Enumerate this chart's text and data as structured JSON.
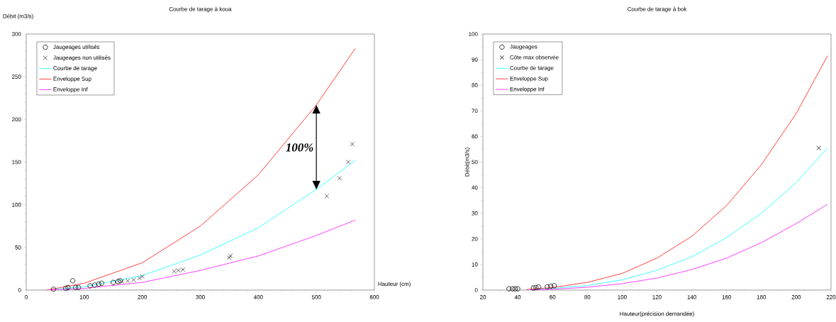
{
  "chart_data": [
    {
      "type": "line",
      "title": "Courbe de tarage à koua",
      "xlabel": "Hauteur (cm)",
      "ylabel": "Débit (m3/s)",
      "xlim": [
        0,
        600
      ],
      "ylim": [
        0,
        300
      ],
      "xticks": [
        0,
        100,
        200,
        300,
        400,
        500,
        600
      ],
      "yticks": [
        0,
        50,
        100,
        150,
        200,
        250,
        300
      ],
      "legend": "top left",
      "grid": false,
      "annotations": [
        "100%"
      ],
      "series": [
        {
          "type": "scatter",
          "name": "Jaugeages utilisés",
          "color": "#000000",
          "marker": "circle",
          "x": [
            47,
            68,
            72,
            80,
            85,
            90,
            110,
            118,
            125,
            130,
            150,
            158,
            162
          ],
          "values": [
            1,
            2,
            3,
            11,
            3,
            3,
            5,
            6,
            7,
            8,
            9,
            10,
            11
          ]
        },
        {
          "type": "scatter",
          "name": "Jaugeages non utilisés",
          "color": "#404040",
          "marker": "cross",
          "x": [
            165,
            175,
            185,
            195,
            200,
            255,
            262,
            270,
            350,
            352,
            518,
            540,
            555,
            562
          ],
          "values": [
            10,
            11,
            12,
            14,
            16,
            22,
            23,
            24,
            38,
            40,
            110,
            131,
            150,
            171
          ]
        },
        {
          "name": "Courbe de tarage",
          "color": "#40ffff",
          "x": [
            35,
            100,
            200,
            300,
            400,
            500,
            567
          ],
          "values": [
            0,
            4,
            17,
            41,
            73,
            118,
            152
          ]
        },
        {
          "name": "Enveloppe Sup",
          "color": "#ff4040",
          "x": [
            35,
            100,
            200,
            300,
            400,
            500,
            567
          ],
          "values": [
            0,
            8,
            32,
            75,
            135,
            217,
            283
          ]
        },
        {
          "name": "Enveloppe Inf",
          "color": "#ff40ff",
          "x": [
            35,
            100,
            200,
            300,
            400,
            500,
            567
          ],
          "values": [
            0,
            2,
            9,
            23,
            40,
            64,
            82
          ]
        }
      ]
    },
    {
      "type": "line",
      "title": "Courbe de tarage à bok",
      "xlabel": "Hauteur(précision demandée)",
      "ylabel": "Débit(m3/s)",
      "xlim": [
        20,
        220
      ],
      "ylim": [
        0,
        100
      ],
      "xticks": [
        20,
        40,
        60,
        80,
        100,
        120,
        140,
        160,
        180,
        200,
        220
      ],
      "yticks": [
        0,
        10,
        20,
        30,
        40,
        50,
        60,
        70,
        80,
        90,
        100
      ],
      "legend": "top left",
      "grid": false,
      "series": [
        {
          "type": "scatter",
          "name": "Jaugeages",
          "color": "#000000",
          "marker": "circle",
          "x": [
            35,
            37,
            38.5,
            40,
            49,
            50.5,
            52,
            57,
            59,
            61
          ],
          "values": [
            0.5,
            0.5,
            0.5,
            0.5,
            0.8,
            1,
            1.2,
            1.3,
            1.5,
            1.7
          ]
        },
        {
          "type": "scatter",
          "name": "Côte max observée",
          "color": "#000000",
          "marker": "cross",
          "x": [
            213
          ],
          "values": [
            55.5
          ]
        },
        {
          "name": "Courbe de tarage",
          "color": "#40ffff",
          "x": [
            45,
            60,
            80,
            100,
            120,
            140,
            160,
            180,
            200,
            218
          ],
          "values": [
            0.1,
            0.6,
            1.8,
            4,
            7.7,
            13,
            20.5,
            30,
            42,
            55.5
          ]
        },
        {
          "name": "Enveloppe Sup",
          "color": "#ff4040",
          "x": [
            45,
            60,
            80,
            100,
            120,
            140,
            160,
            180,
            200,
            218
          ],
          "values": [
            0.2,
            1,
            3,
            6.5,
            12.5,
            21,
            33,
            49,
            69,
            91.5
          ]
        },
        {
          "name": "Enveloppe Inf",
          "color": "#ff40ff",
          "x": [
            45,
            60,
            80,
            100,
            120,
            140,
            160,
            180,
            200,
            218
          ],
          "values": [
            0,
            0.3,
            1.1,
            2.5,
            4.7,
            8,
            12.5,
            18.5,
            26,
            33.5
          ]
        }
      ]
    }
  ]
}
